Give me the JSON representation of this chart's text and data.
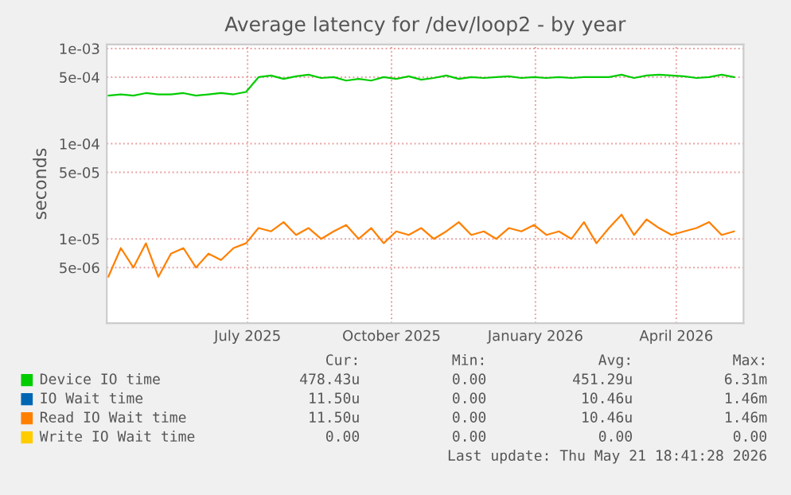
{
  "chart_data": {
    "type": "line",
    "title": "Average latency for /dev/loop2 - by year",
    "ylabel": "seconds",
    "x": [
      "2025-04-03",
      "2025-04-11",
      "2025-04-19",
      "2025-04-27",
      "2025-05-05",
      "2025-05-13",
      "2025-05-21",
      "2025-05-29",
      "2025-06-06",
      "2025-06-14",
      "2025-06-22",
      "2025-06-30",
      "2025-07-08",
      "2025-07-16",
      "2025-07-24",
      "2025-08-01",
      "2025-08-09",
      "2025-08-17",
      "2025-08-25",
      "2025-09-02",
      "2025-09-10",
      "2025-09-18",
      "2025-09-26",
      "2025-10-04",
      "2025-10-12",
      "2025-10-20",
      "2025-10-28",
      "2025-11-05",
      "2025-11-13",
      "2025-11-21",
      "2025-11-29",
      "2025-12-07",
      "2025-12-15",
      "2025-12-23",
      "2025-12-31",
      "2026-01-08",
      "2026-01-16",
      "2026-01-24",
      "2026-02-01",
      "2026-02-09",
      "2026-02-17",
      "2026-02-25",
      "2026-03-05",
      "2026-03-13",
      "2026-03-21",
      "2026-03-29",
      "2026-04-06",
      "2026-04-14",
      "2026-04-22",
      "2026-04-30",
      "2026-05-08"
    ],
    "series": [
      {
        "name": "Device IO time",
        "color": "#00cc00",
        "values": [
          0.00032,
          0.00033,
          0.00032,
          0.00034,
          0.00033,
          0.00033,
          0.00034,
          0.00032,
          0.00033,
          0.00034,
          0.00033,
          0.00035,
          0.0005,
          0.00052,
          0.00048,
          0.00051,
          0.00053,
          0.00049,
          0.0005,
          0.00046,
          0.00048,
          0.00046,
          0.0005,
          0.00048,
          0.00051,
          0.00047,
          0.00049,
          0.00052,
          0.00048,
          0.0005,
          0.00049,
          0.0005,
          0.00051,
          0.00049,
          0.0005,
          0.00049,
          0.0005,
          0.00049,
          0.0005,
          0.0005,
          0.0005,
          0.00053,
          0.00049,
          0.00052,
          0.00053,
          0.00052,
          0.00051,
          0.00049,
          0.0005,
          0.00053,
          0.0005
        ]
      },
      {
        "name": "IO Wait time",
        "color": "#0066b3",
        "values": [
          null,
          null,
          null,
          null,
          null,
          null,
          null,
          null,
          null,
          null,
          null,
          null,
          null,
          null,
          null,
          null,
          null,
          null,
          null,
          null,
          null,
          null,
          null,
          null,
          null,
          null,
          null,
          null,
          null,
          null,
          null,
          null,
          null,
          null,
          null,
          null,
          null,
          null,
          null,
          null,
          null,
          null,
          null,
          null,
          null,
          null,
          null,
          null,
          null,
          null,
          null
        ]
      },
      {
        "name": "Read IO Wait time",
        "color": "#ff8000",
        "values": [
          4e-06,
          8e-06,
          5e-06,
          9e-06,
          4e-06,
          7e-06,
          8e-06,
          5e-06,
          7e-06,
          6e-06,
          8e-06,
          9e-06,
          1.3e-05,
          1.2e-05,
          1.5e-05,
          1.1e-05,
          1.3e-05,
          1e-05,
          1.2e-05,
          1.4e-05,
          1e-05,
          1.3e-05,
          9e-06,
          1.2e-05,
          1.1e-05,
          1.3e-05,
          1e-05,
          1.2e-05,
          1.5e-05,
          1.1e-05,
          1.2e-05,
          1e-05,
          1.3e-05,
          1.2e-05,
          1.4e-05,
          1.1e-05,
          1.2e-05,
          1e-05,
          1.5e-05,
          9e-06,
          1.3e-05,
          1.8e-05,
          1.1e-05,
          1.6e-05,
          1.3e-05,
          1.1e-05,
          1.2e-05,
          1.3e-05,
          1.5e-05,
          1.1e-05,
          1.2e-05
        ]
      },
      {
        "name": "Write IO Wait time",
        "color": "#ffcc00",
        "values": [
          null,
          null,
          null,
          null,
          null,
          null,
          null,
          null,
          null,
          null,
          null,
          null,
          null,
          null,
          null,
          null,
          null,
          null,
          null,
          null,
          null,
          null,
          null,
          null,
          null,
          null,
          null,
          null,
          null,
          null,
          null,
          null,
          null,
          null,
          null,
          null,
          null,
          null,
          null,
          null,
          null,
          null,
          null,
          null,
          null,
          null,
          null,
          null,
          null,
          null,
          null
        ]
      }
    ],
    "log": "y",
    "ylim": [
      1.3e-06,
      0.0011
    ],
    "yticks": [
      {
        "value": 0.001,
        "label": "1e-03"
      },
      {
        "value": 0.0005,
        "label": "5e-04"
      },
      {
        "value": 0.0001,
        "label": "1e-04"
      },
      {
        "value": 5e-05,
        "label": "5e-05"
      },
      {
        "value": 1e-05,
        "label": "1e-05"
      },
      {
        "value": 5e-06,
        "label": "5e-06"
      }
    ],
    "xlim": [
      "2025-04-02",
      "2026-05-14"
    ],
    "xticks": [
      {
        "value": "2025-07-01",
        "label": "July 2025"
      },
      {
        "value": "2025-10-01",
        "label": "October 2025"
      },
      {
        "value": "2026-01-01",
        "label": "January 2026"
      },
      {
        "value": "2026-04-01",
        "label": "April 2026"
      }
    ],
    "grid": true,
    "legend": "bottom",
    "marker": "none",
    "line_style": "solid",
    "annotations": [
      "Cur:",
      "Min:",
      "Avg:",
      "Max:",
      "478.43u",
      "0.00",
      "451.29u",
      "6.31m",
      "11.50u",
      "0.00",
      "10.46u",
      "1.46m",
      "11.50u",
      "0.00",
      "10.46u",
      "1.46m",
      "0.00",
      "0.00",
      "0.00",
      "0.00",
      "Last update: Thu May 21 18:41:28 2026"
    ]
  }
}
